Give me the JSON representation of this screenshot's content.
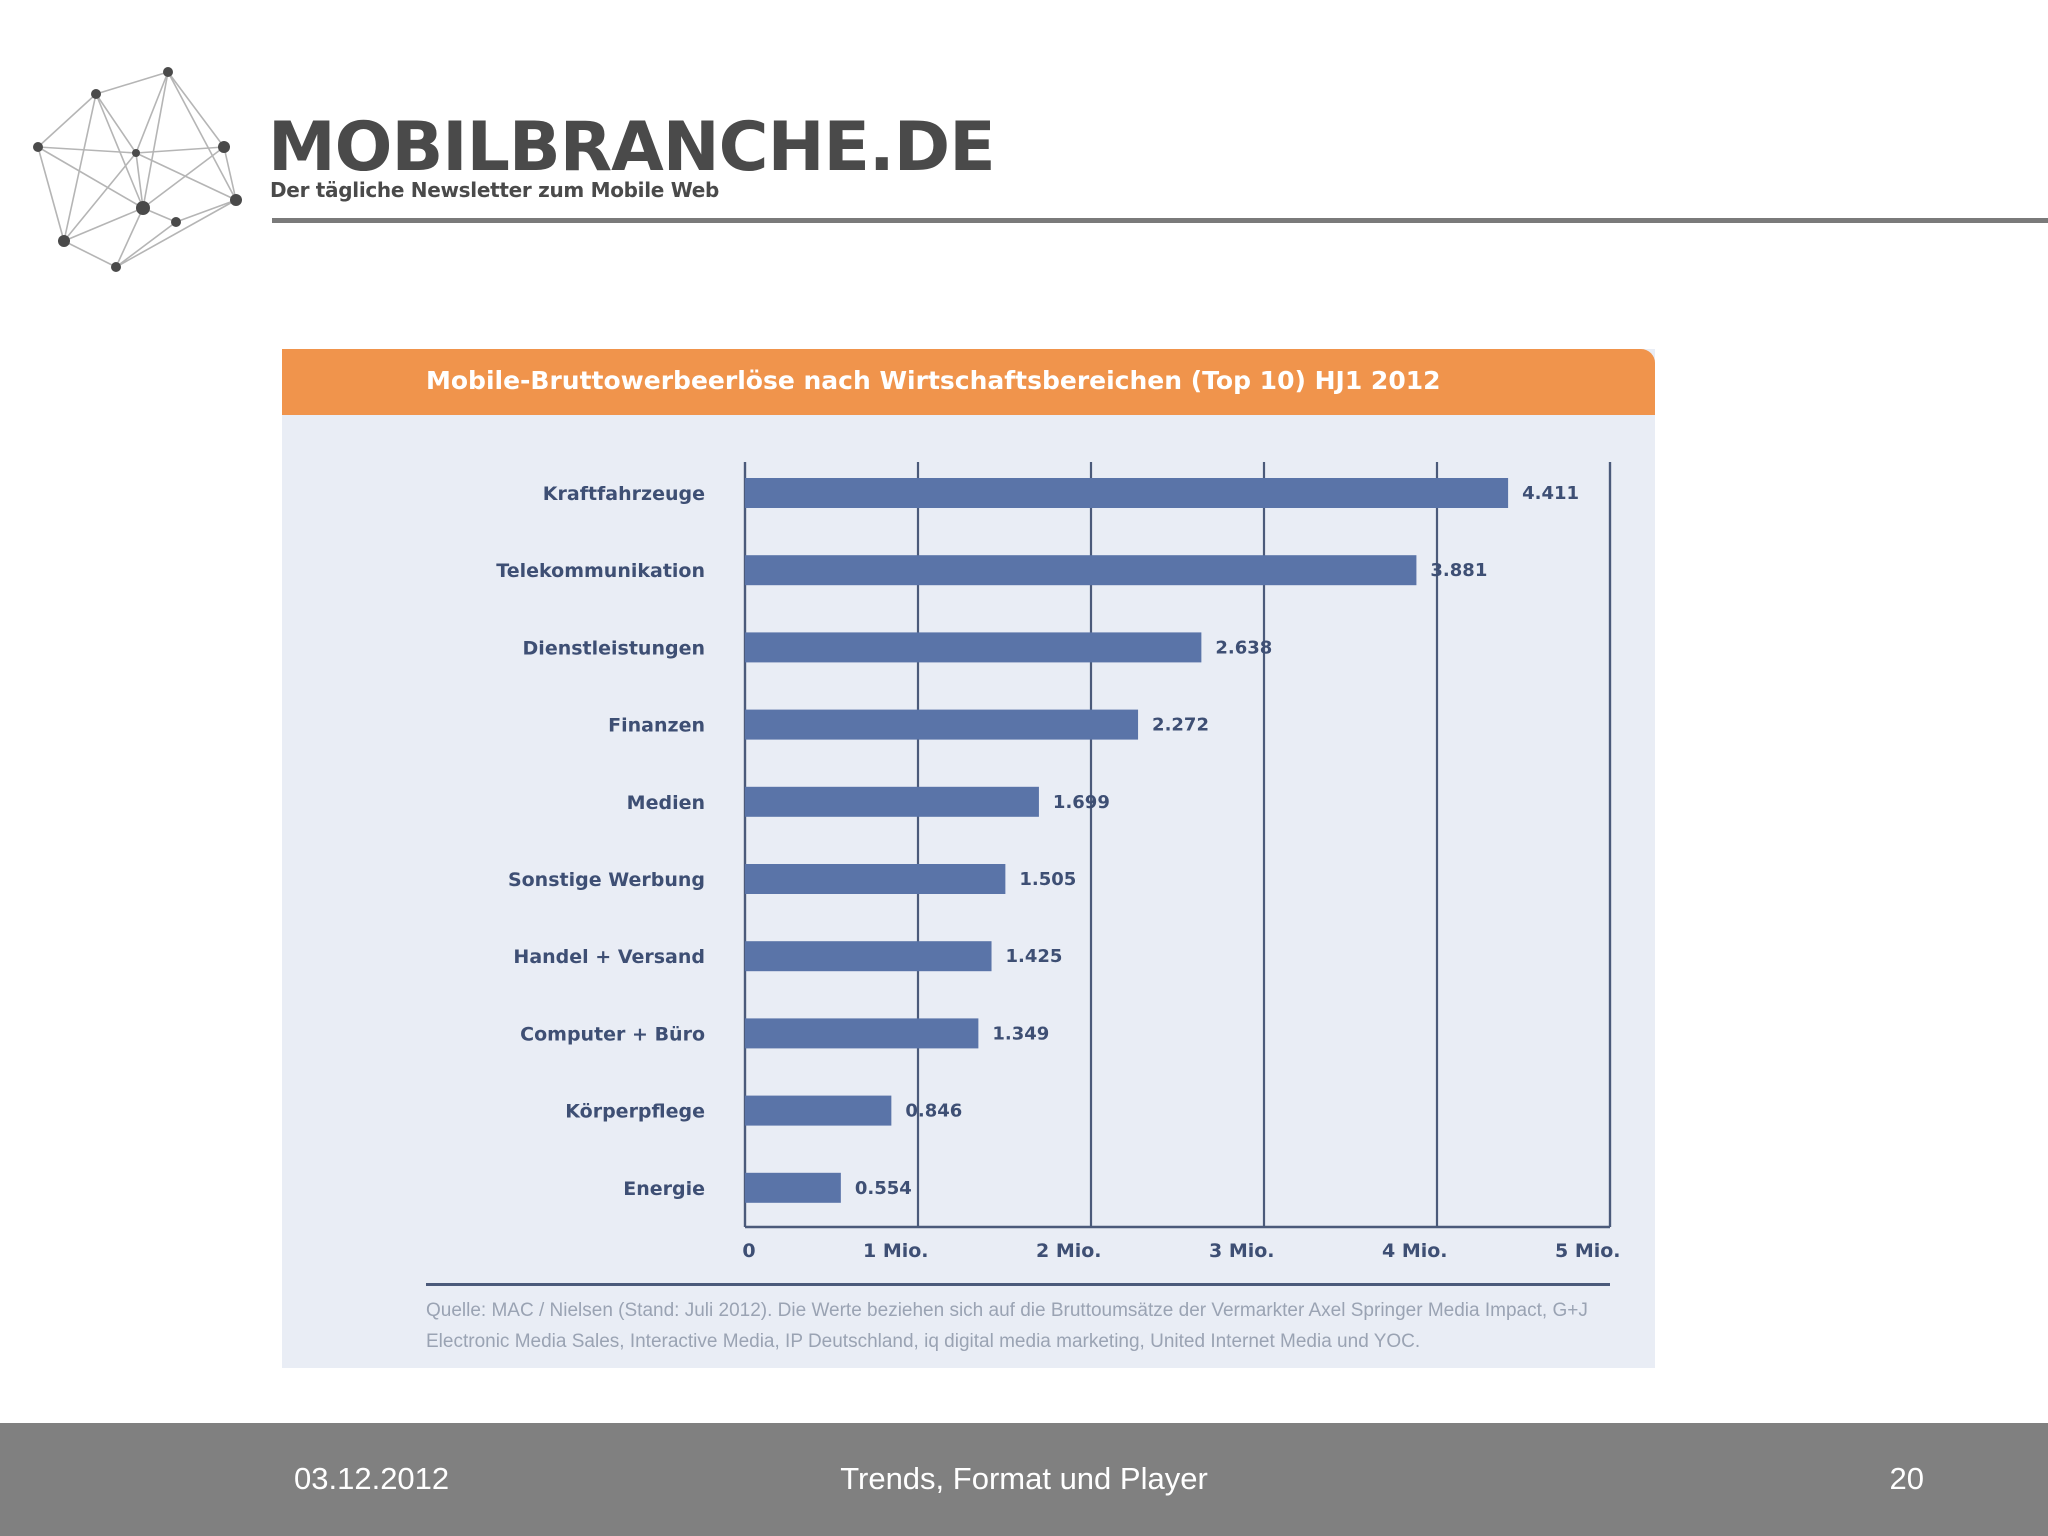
{
  "brand": {
    "name": "MOBILBRANCHE.DE",
    "tagline": "Der tägliche Newsletter zum Mobile Web"
  },
  "colors": {
    "title_bar": "#f0944c",
    "bar": "#5a74a8",
    "panel_bg": "#e9edf5",
    "footer_bg": "#808080"
  },
  "source_note": "Quelle: MAC / Nielsen (Stand: Juli 2012). Die Werte beziehen sich auf die Bruttoumsätze der Vermarkter Axel Springer Media Impact, G+J Electronic Media Sales, Interactive Media, IP Deutschland, iq digital media marketing, United Internet Media und YOC.",
  "footer": {
    "date": "03.12.2012",
    "title": "Trends, Format und Player",
    "page": "20"
  },
  "chart_data": {
    "type": "bar",
    "orientation": "horizontal",
    "title": "Mobile-Bruttowerbeerlöse nach Wirtschaftsbereichen (Top 10) HJ1 2012",
    "categories": [
      "Kraftfahrzeuge",
      "Telekommunikation",
      "Dienstleistungen",
      "Finanzen",
      "Medien",
      "Sonstige Werbung",
      "Handel + Versand",
      "Computer + Büro",
      "Körperpflege",
      "Energie"
    ],
    "values": [
      4.411,
      3.881,
      2.638,
      2.272,
      1.699,
      1.505,
      1.425,
      1.349,
      0.846,
      0.554
    ],
    "value_labels": [
      "4.411",
      "3.881",
      "2.638",
      "2.272",
      "1.699",
      "1.505",
      "1.425",
      "1.349",
      "0.846",
      "0.554"
    ],
    "x_tick_labels": [
      "0",
      "1 Mio.",
      "2 Mio.",
      "3 Mio.",
      "4 Mio.",
      "5 Mio."
    ],
    "xlim": [
      0,
      5
    ],
    "grid": true
  }
}
